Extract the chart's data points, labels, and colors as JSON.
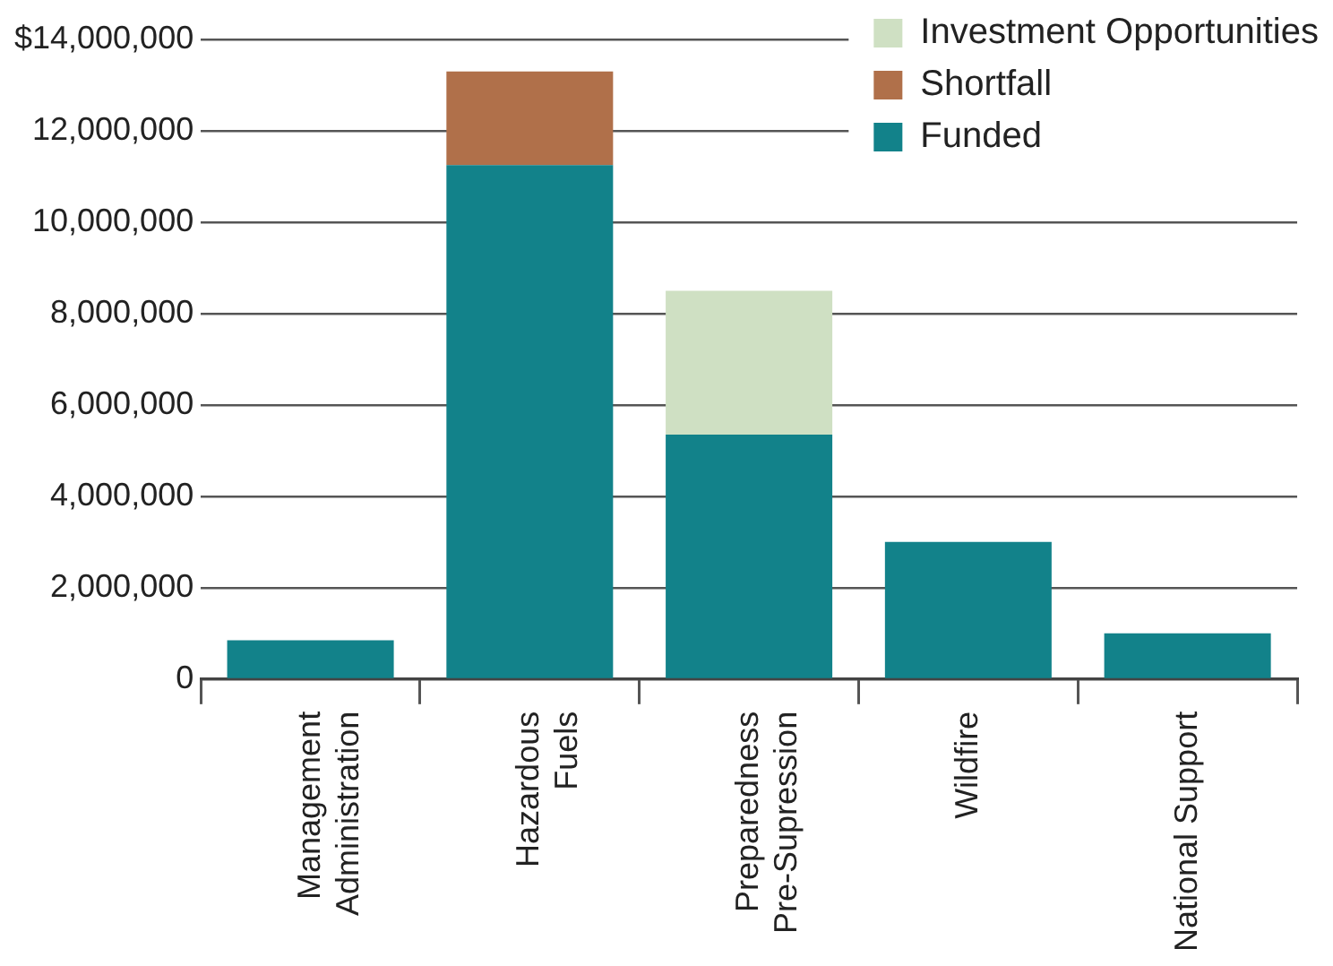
{
  "chart_data": {
    "type": "bar",
    "stacked": true,
    "categories": [
      "Management\nAdministration",
      "Hazardous\nFuels",
      "Preparedness\nPre-Supression",
      "Wildfire",
      "National Support"
    ],
    "series": [
      {
        "name": "Funded",
        "color": "#12828a",
        "values": [
          850000,
          11250000,
          5350000,
          3000000,
          1000000
        ]
      },
      {
        "name": "Shortfall",
        "color": "#b0704a",
        "values": [
          null,
          2050000,
          null,
          null,
          null
        ]
      },
      {
        "name": "Investment Opportunities",
        "color": "#cfe0c3",
        "values": [
          null,
          null,
          3150000,
          null,
          null
        ]
      }
    ],
    "ylim": [
      0,
      14000000
    ],
    "yticks": [
      {
        "value": 0,
        "label": "0"
      },
      {
        "value": 2000000,
        "label": "2,000,000"
      },
      {
        "value": 4000000,
        "label": "4,000,000"
      },
      {
        "value": 6000000,
        "label": "6,000,000"
      },
      {
        "value": 8000000,
        "label": "8,000,000"
      },
      {
        "value": 10000000,
        "label": "10,000,000"
      },
      {
        "value": 12000000,
        "label": "12,000,000"
      },
      {
        "value": 14000000,
        "label": "$14,000,000"
      }
    ],
    "grid": "y",
    "legend": "top right"
  }
}
